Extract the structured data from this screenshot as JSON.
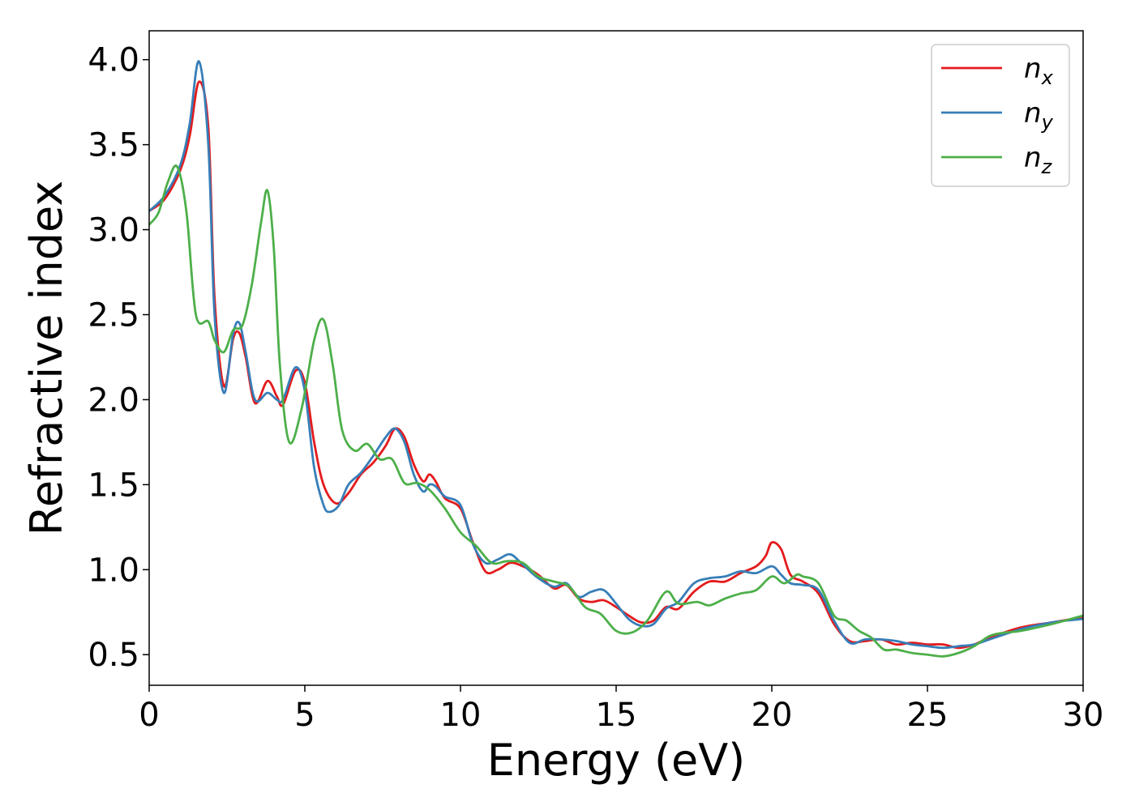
{
  "chart_data": {
    "type": "line",
    "xlabel": "Energy (eV)",
    "ylabel": "Refractive index",
    "xlim": [
      0,
      30
    ],
    "ylim": [
      0.32,
      4.17
    ],
    "xticks": [
      0,
      5,
      10,
      15,
      20,
      25,
      30
    ],
    "xtick_labels": [
      "0",
      "5",
      "10",
      "15",
      "20",
      "25",
      "30"
    ],
    "yticks": [
      0.5,
      1.0,
      1.5,
      2.0,
      2.5,
      3.0,
      3.5,
      4.0
    ],
    "ytick_labels": [
      "0.5",
      "1.0",
      "1.5",
      "2.0",
      "2.5",
      "3.0",
      "3.5",
      "4.0"
    ],
    "grid": false,
    "legend_position": "top-right",
    "series": [
      {
        "name": "n",
        "subscript": "x",
        "color": "#e41a1c",
        "x": [
          0,
          0.5,
          1.0,
          1.3,
          1.6,
          1.9,
          2.1,
          2.4,
          2.7,
          2.9,
          3.1,
          3.4,
          3.8,
          4.1,
          4.3,
          4.7,
          5.0,
          5.3,
          5.6,
          6.0,
          6.4,
          6.8,
          7.2,
          7.6,
          7.9,
          8.2,
          8.5,
          8.8,
          9.0,
          9.2,
          9.5,
          10.0,
          10.4,
          10.8,
          11.2,
          11.6,
          12.0,
          12.5,
          13.0,
          13.4,
          13.8,
          14.2,
          14.6,
          15.0,
          15.4,
          15.8,
          16.2,
          16.6,
          17.0,
          17.5,
          18.0,
          18.5,
          19.0,
          19.5,
          19.8,
          20.0,
          20.3,
          20.6,
          21.0,
          21.5,
          22.0,
          22.5,
          23.0,
          23.5,
          24.0,
          24.5,
          25.0,
          25.5,
          26.0,
          26.5,
          27.0,
          28.0,
          29.0,
          30.0
        ],
        "y": [
          3.11,
          3.18,
          3.35,
          3.55,
          3.87,
          3.6,
          2.6,
          2.08,
          2.36,
          2.39,
          2.25,
          1.98,
          2.11,
          2.02,
          1.97,
          2.17,
          2.1,
          1.75,
          1.5,
          1.39,
          1.45,
          1.56,
          1.63,
          1.73,
          1.83,
          1.78,
          1.62,
          1.52,
          1.56,
          1.52,
          1.42,
          1.36,
          1.16,
          0.99,
          1.0,
          1.04,
          1.02,
          0.97,
          0.89,
          0.91,
          0.83,
          0.81,
          0.82,
          0.78,
          0.73,
          0.69,
          0.7,
          0.78,
          0.77,
          0.87,
          0.93,
          0.93,
          0.98,
          1.02,
          1.08,
          1.16,
          1.12,
          0.97,
          0.93,
          0.86,
          0.68,
          0.58,
          0.58,
          0.59,
          0.56,
          0.57,
          0.56,
          0.56,
          0.54,
          0.56,
          0.6,
          0.66,
          0.69,
          0.72
        ]
      },
      {
        "name": "n",
        "subscript": "y",
        "color": "#377eb8",
        "x": [
          0,
          0.5,
          1.0,
          1.3,
          1.6,
          1.9,
          2.1,
          2.4,
          2.7,
          2.9,
          3.1,
          3.4,
          3.8,
          4.1,
          4.3,
          4.7,
          5.0,
          5.3,
          5.6,
          5.8,
          6.1,
          6.4,
          6.8,
          7.2,
          7.6,
          7.9,
          8.2,
          8.5,
          8.8,
          9.0,
          9.2,
          9.5,
          10.0,
          10.4,
          10.8,
          11.2,
          11.6,
          12.0,
          12.5,
          13.0,
          13.4,
          13.8,
          14.2,
          14.6,
          15.0,
          15.4,
          15.8,
          16.2,
          16.6,
          17.0,
          17.5,
          18.0,
          18.5,
          19.0,
          19.5,
          20.0,
          20.3,
          20.6,
          21.0,
          21.5,
          22.0,
          22.5,
          23.0,
          23.5,
          24.0,
          24.5,
          25.0,
          25.5,
          26.0,
          26.5,
          27.0,
          28.0,
          29.0,
          30.0
        ],
        "y": [
          3.11,
          3.2,
          3.38,
          3.62,
          3.99,
          3.5,
          2.5,
          2.04,
          2.39,
          2.45,
          2.28,
          2.0,
          2.04,
          2.0,
          2.0,
          2.19,
          2.05,
          1.6,
          1.38,
          1.34,
          1.38,
          1.5,
          1.57,
          1.67,
          1.78,
          1.83,
          1.75,
          1.56,
          1.46,
          1.5,
          1.49,
          1.43,
          1.38,
          1.15,
          1.04,
          1.06,
          1.09,
          1.03,
          0.95,
          0.9,
          0.92,
          0.84,
          0.87,
          0.88,
          0.8,
          0.71,
          0.67,
          0.68,
          0.77,
          0.81,
          0.92,
          0.95,
          0.96,
          0.99,
          0.98,
          1.02,
          0.97,
          0.92,
          0.91,
          0.88,
          0.7,
          0.57,
          0.59,
          0.59,
          0.58,
          0.56,
          0.55,
          0.54,
          0.55,
          0.56,
          0.59,
          0.65,
          0.69,
          0.71
        ]
      },
      {
        "name": "n",
        "subscript": "z",
        "color": "#4daf4a",
        "x": [
          0,
          0.3,
          0.6,
          0.9,
          1.2,
          1.5,
          1.9,
          2.1,
          2.4,
          2.7,
          3.0,
          3.3,
          3.6,
          3.8,
          4.0,
          4.2,
          4.5,
          4.9,
          5.3,
          5.6,
          5.9,
          6.2,
          6.6,
          7.0,
          7.4,
          7.8,
          8.2,
          8.6,
          9.0,
          9.5,
          10.0,
          10.5,
          11.0,
          11.5,
          12.0,
          12.5,
          13.0,
          13.5,
          14.0,
          14.5,
          15.0,
          15.5,
          16.0,
          16.6,
          17.0,
          17.6,
          18.0,
          18.5,
          19.0,
          19.5,
          20.0,
          20.4,
          20.8,
          21.0,
          21.5,
          22.0,
          22.4,
          22.8,
          23.2,
          23.6,
          24.0,
          24.5,
          25.0,
          25.5,
          26.0,
          26.5,
          27.0,
          27.5,
          28.0,
          29.0,
          30.0
        ],
        "y": [
          3.03,
          3.1,
          3.28,
          3.37,
          3.1,
          2.5,
          2.46,
          2.35,
          2.28,
          2.41,
          2.44,
          2.68,
          3.05,
          3.23,
          2.9,
          2.2,
          1.75,
          1.95,
          2.35,
          2.47,
          2.2,
          1.82,
          1.7,
          1.74,
          1.65,
          1.65,
          1.51,
          1.51,
          1.47,
          1.36,
          1.22,
          1.14,
          1.04,
          1.05,
          1.04,
          0.96,
          0.93,
          0.9,
          0.78,
          0.74,
          0.64,
          0.63,
          0.7,
          0.87,
          0.8,
          0.81,
          0.79,
          0.83,
          0.86,
          0.88,
          0.96,
          0.92,
          0.97,
          0.96,
          0.92,
          0.73,
          0.7,
          0.64,
          0.6,
          0.53,
          0.53,
          0.51,
          0.5,
          0.49,
          0.51,
          0.55,
          0.61,
          0.63,
          0.64,
          0.68,
          0.73
        ]
      }
    ]
  }
}
